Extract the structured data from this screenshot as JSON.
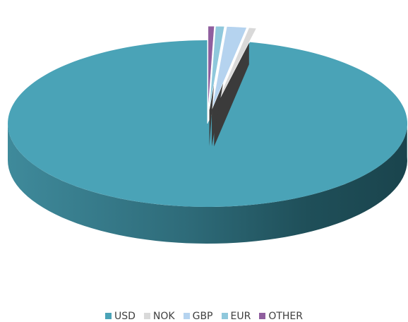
{
  "chart_data": {
    "type": "pie",
    "style": "3d-exploded",
    "categories": [
      "USD",
      "NOK",
      "GBP",
      "EUR",
      "OTHER"
    ],
    "values": [
      96.6,
      0.6,
      1.6,
      0.7,
      0.5
    ],
    "units": "percent",
    "colors": [
      "#4aa3b7",
      "#d9d9d9",
      "#b5d3ef",
      "#8fc8dc",
      "#8f5e9e"
    ],
    "exploded": [
      "NOK",
      "GBP",
      "EUR",
      "OTHER"
    ],
    "legend_position": "bottom",
    "title": ""
  }
}
